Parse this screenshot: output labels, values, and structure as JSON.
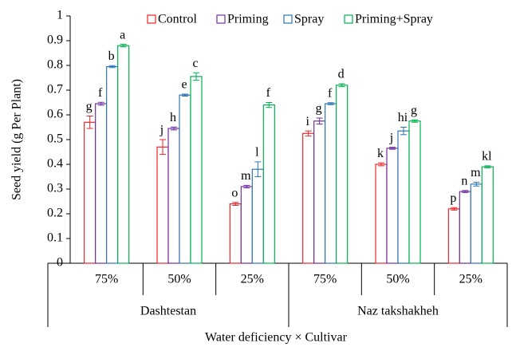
{
  "chart_data": {
    "type": "bar",
    "ylabel": "Seed yield (g Per Plant)",
    "xlabel": "Water deficiency × Cultivar",
    "categories": [
      "75%",
      "50%",
      "25%",
      "75%",
      "50%",
      "25%"
    ],
    "cultivars": [
      "Dashtestan",
      "Naz takshakheh"
    ],
    "ylim": [
      0,
      1
    ],
    "yticks": [
      0,
      0.1,
      0.2,
      0.3,
      0.4,
      0.5,
      0.6,
      0.7,
      0.8,
      0.9,
      1
    ],
    "legend": "top",
    "series": [
      {
        "name": "Control",
        "color": "#e8262b",
        "values": [
          0.57,
          0.47,
          0.24,
          0.525,
          0.4,
          0.22
        ],
        "errors": [
          0.025,
          0.03,
          0.006,
          0.01,
          0.006,
          0.005
        ],
        "letters": [
          "g",
          "j",
          "o",
          "i",
          "k",
          "p"
        ]
      },
      {
        "name": "Priming",
        "color": "#7030a0",
        "values": [
          0.645,
          0.545,
          0.31,
          0.575,
          0.465,
          0.29
        ],
        "errors": [
          0.006,
          0.006,
          0.005,
          0.012,
          0.004,
          0.004
        ],
        "letters": [
          "f",
          "h",
          "m",
          "g",
          "j",
          "n"
        ]
      },
      {
        "name": "Spray",
        "color": "#2e75b6",
        "values": [
          0.795,
          0.68,
          0.38,
          0.645,
          0.535,
          0.32
        ],
        "errors": [
          0.004,
          0.004,
          0.03,
          0.004,
          0.015,
          0.008
        ],
        "letters": [
          "b",
          "e",
          "l",
          "f",
          "hi",
          "m"
        ]
      },
      {
        "name": "Priming+Spray",
        "color": "#00b050",
        "values": [
          0.88,
          0.755,
          0.64,
          0.72,
          0.575,
          0.39
        ],
        "errors": [
          0.005,
          0.015,
          0.01,
          0.006,
          0.005,
          0.004
        ],
        "letters": [
          "a",
          "c",
          "f",
          "d",
          "g",
          "kl"
        ]
      }
    ]
  }
}
